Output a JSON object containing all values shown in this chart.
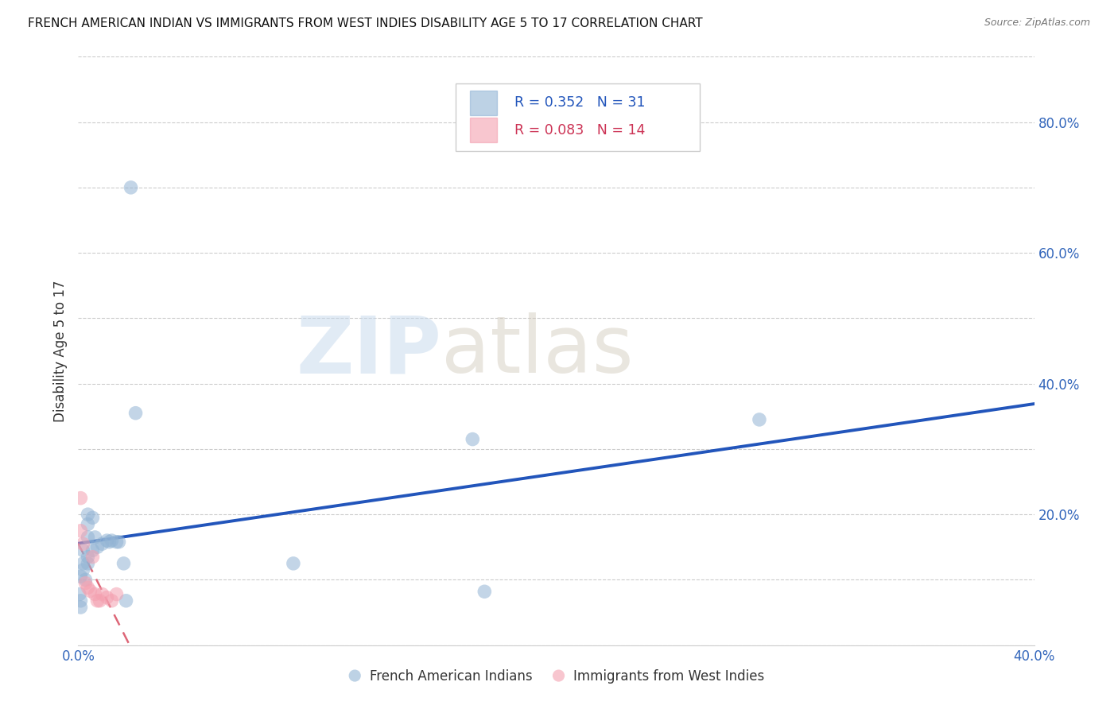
{
  "title": "FRENCH AMERICAN INDIAN VS IMMIGRANTS FROM WEST INDIES DISABILITY AGE 5 TO 17 CORRELATION CHART",
  "source": "Source: ZipAtlas.com",
  "ylabel_label": "Disability Age 5 to 17",
  "xlim": [
    0.0,
    0.4
  ],
  "ylim": [
    0.0,
    0.9
  ],
  "xticks": [
    0.0,
    0.1,
    0.2,
    0.3,
    0.4
  ],
  "yticks_right": [
    0.0,
    0.2,
    0.4,
    0.6,
    0.8
  ],
  "ytick_labels_right": [
    "",
    "20.0%",
    "40.0%",
    "60.0%",
    "80.0%"
  ],
  "xtick_labels": [
    "0.0%",
    "",
    "",
    "",
    "40.0%"
  ],
  "grid_color": "#cccccc",
  "background_color": "#ffffff",
  "blue_color": "#92b4d4",
  "pink_color": "#f4a0b0",
  "line_blue": "#2255bb",
  "line_pink": "#dd6677",
  "R_blue": 0.352,
  "N_blue": 31,
  "R_pink": 0.083,
  "N_pink": 14,
  "blue_points_x": [
    0.022,
    0.004,
    0.004,
    0.006,
    0.004,
    0.002,
    0.002,
    0.001,
    0.002,
    0.003,
    0.004,
    0.004,
    0.006,
    0.007,
    0.008,
    0.01,
    0.012,
    0.013,
    0.014,
    0.016,
    0.017,
    0.019,
    0.02,
    0.024,
    0.165,
    0.17,
    0.285,
    0.001,
    0.001,
    0.0005,
    0.09
  ],
  "blue_points_y": [
    0.7,
    0.2,
    0.185,
    0.195,
    0.165,
    0.145,
    0.125,
    0.105,
    0.115,
    0.1,
    0.135,
    0.125,
    0.145,
    0.165,
    0.15,
    0.155,
    0.16,
    0.158,
    0.16,
    0.158,
    0.158,
    0.125,
    0.068,
    0.355,
    0.315,
    0.082,
    0.345,
    0.058,
    0.068,
    0.078,
    0.125
  ],
  "pink_points_x": [
    0.001,
    0.001,
    0.002,
    0.003,
    0.004,
    0.005,
    0.006,
    0.007,
    0.008,
    0.009,
    0.01,
    0.012,
    0.014,
    0.016
  ],
  "pink_points_y": [
    0.175,
    0.225,
    0.155,
    0.095,
    0.088,
    0.083,
    0.135,
    0.078,
    0.068,
    0.068,
    0.078,
    0.073,
    0.068,
    0.078
  ],
  "watermark_zip": "ZIP",
  "watermark_atlas": "atlas",
  "legend_label_blue": "French American Indians",
  "legend_label_pink": "Immigrants from West Indies"
}
